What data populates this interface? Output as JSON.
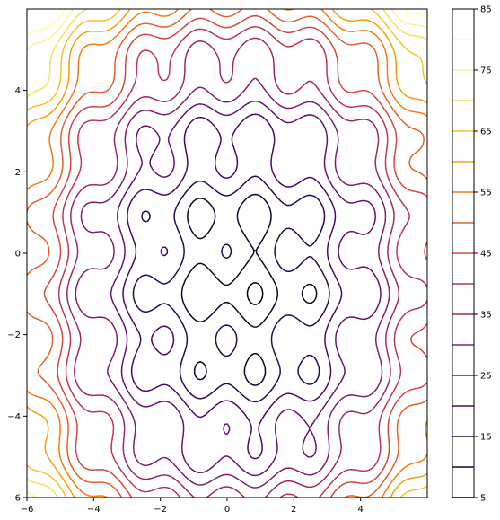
{
  "chart_data": {
    "type": "contour",
    "title": "",
    "xlabel": "",
    "ylabel": "",
    "xlim": [
      -6,
      6
    ],
    "ylim": [
      -6,
      6
    ],
    "xticks": [
      -6,
      -4,
      -2,
      0,
      2,
      4
    ],
    "yticks": [
      -6,
      -4,
      -2,
      0,
      2,
      4
    ],
    "x_tick_labels": [
      "−6",
      "−4",
      "−2",
      "0",
      "2",
      "4"
    ],
    "y_tick_labels": [
      "−6",
      "−4",
      "−2",
      "0",
      "2",
      "4"
    ],
    "grid": false,
    "colormap": "inferno",
    "colorbar": {
      "range": [
        5,
        85
      ],
      "tick_values": [
        5,
        15,
        25,
        35,
        45,
        55,
        65,
        75,
        85
      ],
      "tick_labels": [
        "5",
        "15",
        "25",
        "35",
        "45",
        "55",
        "65",
        "75",
        "85"
      ]
    },
    "levels": [
      5,
      10,
      15,
      20,
      25,
      30,
      35,
      40,
      45,
      50,
      55,
      60,
      65,
      70,
      75,
      80
    ],
    "level_colors": [
      "#000004",
      "#0d0829",
      "#280b54",
      "#480b6a",
      "#65156e",
      "#82206c",
      "#9f2a63",
      "#bb3754",
      "#d44842",
      "#e8602d",
      "#f57d15",
      "#fc9f07",
      "#fac228",
      "#f3e35a",
      "#fbf3a0",
      "#fcffa4"
    ]
  }
}
